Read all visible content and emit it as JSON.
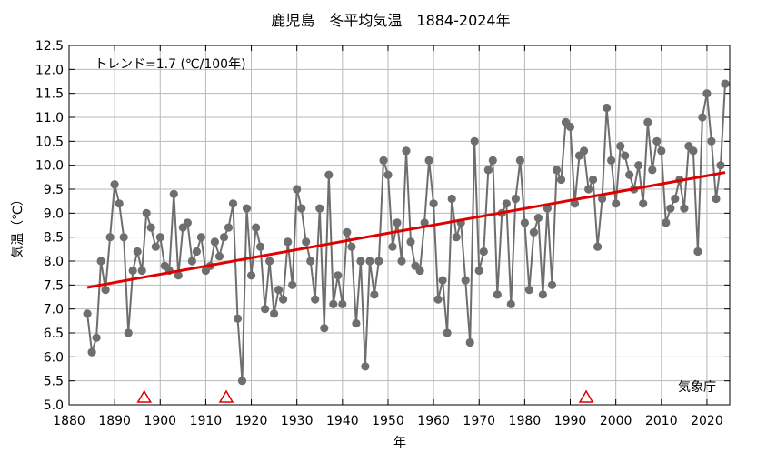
{
  "chart_data": {
    "type": "line",
    "title": "鹿児島　冬平均気温　1884-2024年",
    "xlabel": "年",
    "ylabel": "気温（℃）",
    "xlim": [
      1880,
      2025
    ],
    "ylim": [
      5.0,
      12.5
    ],
    "xticks": [
      "1880",
      "1890",
      "1900",
      "1910",
      "1920",
      "1930",
      "1940",
      "1950",
      "1960",
      "1970",
      "1980",
      "1990",
      "2000",
      "2010",
      "2020"
    ],
    "yticks": [
      "5.0",
      "5.5",
      "6.0",
      "6.5",
      "7.0",
      "7.5",
      "8.0",
      "8.5",
      "9.0",
      "9.5",
      "10.0",
      "10.5",
      "11.0",
      "11.5",
      "12.0",
      "12.5"
    ],
    "grid": true,
    "trend_label": "トレンド=1.7 (℃/100年)",
    "source_label": "気象庁",
    "series": [
      {
        "color": "#6e6e6e",
        "x": [
          1884,
          1885,
          1886,
          1887,
          1888,
          1889,
          1890,
          1891,
          1892,
          1893,
          1894,
          1895,
          1896,
          1897,
          1898,
          1899,
          1900,
          1901,
          1902,
          1903,
          1904,
          1905,
          1906,
          1907,
          1908,
          1909,
          1910,
          1911,
          1912,
          1913,
          1914,
          1915,
          1916,
          1917,
          1918,
          1919,
          1920,
          1921,
          1922,
          1923,
          1924,
          1925,
          1926,
          1927,
          1928,
          1929,
          1930,
          1931,
          1932,
          1933,
          1934,
          1935,
          1936,
          1937,
          1938,
          1939,
          1940,
          1941,
          1942,
          1943,
          1944,
          1945,
          1946,
          1947,
          1948,
          1949,
          1950,
          1951,
          1952,
          1953,
          1954,
          1955,
          1956,
          1957,
          1958,
          1959,
          1960,
          1961,
          1962,
          1963,
          1964,
          1965,
          1966,
          1967,
          1968,
          1969,
          1970,
          1971,
          1972,
          1973,
          1974,
          1975,
          1976,
          1977,
          1978,
          1979,
          1980,
          1981,
          1982,
          1983,
          1984,
          1985,
          1986,
          1987,
          1988,
          1989,
          1990,
          1991,
          1992,
          1993,
          1994,
          1995,
          1996,
          1997,
          1998,
          1999,
          2000,
          2001,
          2002,
          2003,
          2004,
          2005,
          2006,
          2007,
          2008,
          2009,
          2010,
          2011,
          2012,
          2013,
          2014,
          2015,
          2016,
          2017,
          2018,
          2019,
          2020,
          2021,
          2022,
          2023,
          2024
        ],
        "values": [
          6.9,
          6.1,
          6.4,
          8.0,
          7.4,
          8.5,
          9.6,
          9.2,
          8.5,
          6.5,
          7.8,
          8.2,
          7.8,
          9.0,
          8.7,
          8.3,
          8.5,
          7.9,
          7.8,
          9.4,
          7.7,
          8.7,
          8.8,
          8.0,
          8.2,
          8.5,
          7.8,
          7.9,
          8.4,
          8.1,
          8.5,
          8.7,
          9.2,
          6.8,
          5.5,
          9.1,
          7.7,
          8.7,
          8.3,
          7.0,
          8.0,
          6.9,
          7.4,
          7.2,
          8.4,
          7.5,
          9.5,
          9.1,
          8.4,
          8.0,
          7.2,
          9.1,
          6.6,
          9.8,
          7.1,
          7.7,
          7.1,
          8.6,
          8.3,
          6.7,
          8.0,
          5.8,
          8.0,
          7.3,
          8.0,
          10.1,
          9.8,
          8.3,
          8.8,
          8.0,
          10.3,
          8.4,
          7.9,
          7.8,
          8.8,
          10.1,
          9.2,
          7.2,
          7.6,
          6.5,
          9.3,
          8.5,
          8.8,
          7.6,
          6.3,
          10.5,
          7.8,
          8.2,
          9.9,
          10.1,
          7.3,
          9.0,
          9.2,
          7.1,
          9.3,
          10.1,
          8.8,
          7.4,
          8.6,
          8.9,
          7.3,
          9.1,
          7.5,
          9.9,
          9.7,
          10.9,
          10.8,
          9.2,
          10.2,
          10.3,
          9.5,
          9.7,
          8.3,
          9.3,
          11.2,
          10.1,
          9.2,
          10.4,
          10.2,
          9.8,
          9.5,
          10.0,
          9.2,
          10.9,
          9.9,
          10.5,
          10.3,
          8.8,
          9.1,
          9.3,
          9.7,
          9.1,
          10.4,
          10.3,
          8.2,
          11.0,
          11.5,
          10.5,
          9.3,
          10.0,
          11.7
        ]
      }
    ],
    "trend": {
      "color": "#e00000",
      "x": [
        1884,
        2024
      ],
      "y": [
        7.45,
        9.85
      ]
    },
    "markers": {
      "color": "#e00000",
      "x": [
        1896.5,
        1914.5,
        1993.5
      ]
    }
  }
}
